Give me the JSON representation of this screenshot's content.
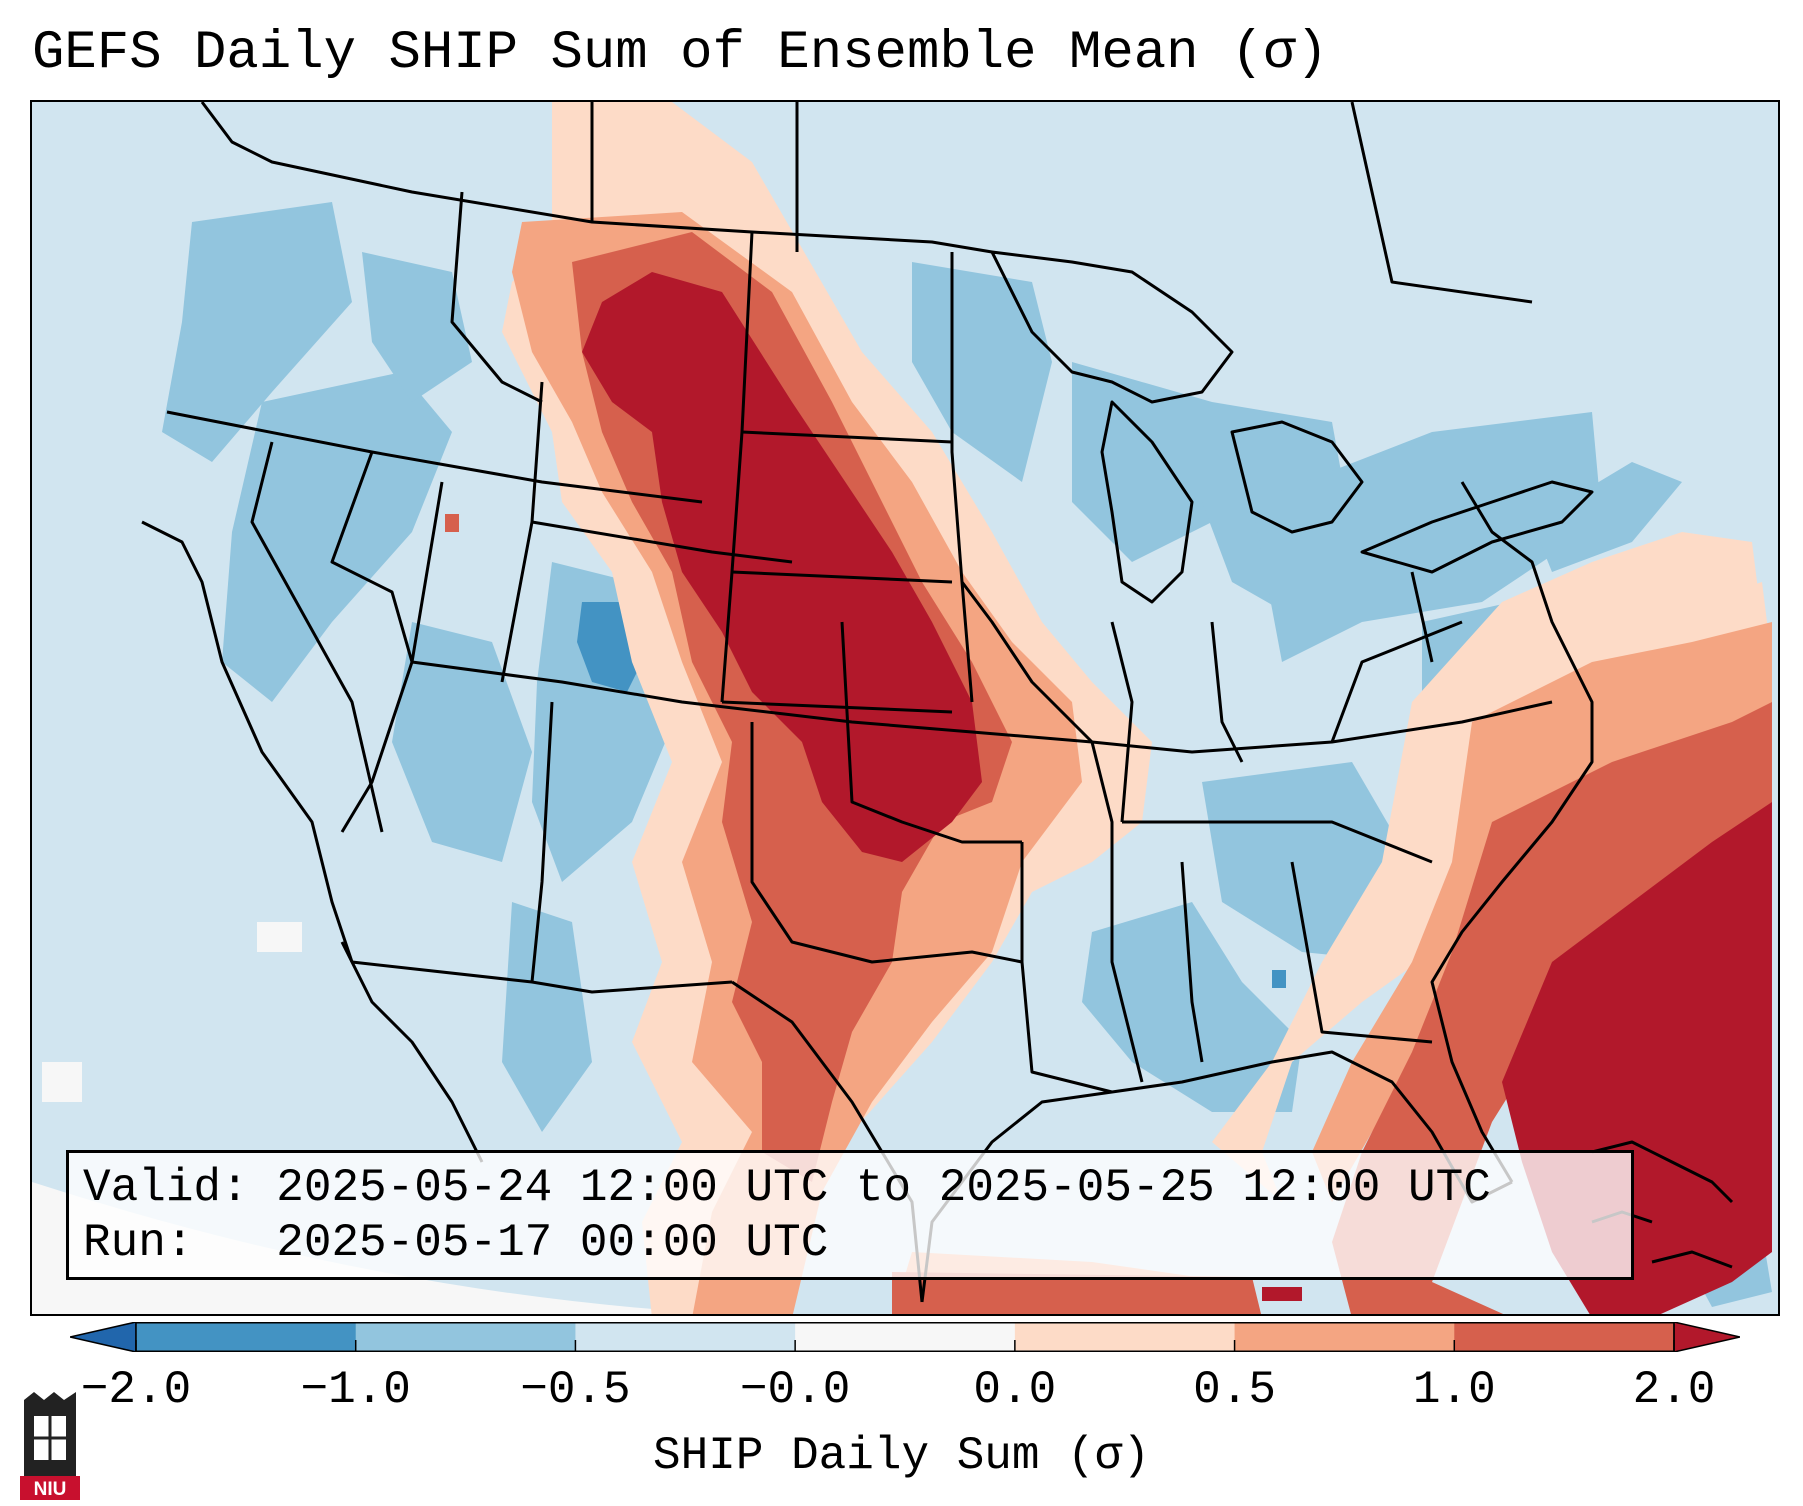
{
  "header": {
    "title": "GEFS Daily SHIP Sum of Ensemble Mean (σ)"
  },
  "info": {
    "valid_line": "Valid: 2025-05-24 12:00 UTC to 2025-05-25 12:00 UTC",
    "run_line": "Run:   2025-05-17 00:00 UTC"
  },
  "colorbar": {
    "title": "SHIP Daily Sum (σ)",
    "tick_labels": [
      "−2.0",
      "−1.0",
      "−0.5",
      "−0.0",
      "0.0",
      "0.5",
      "1.0",
      "2.0"
    ],
    "bins": [
      {
        "range": "< -2.0",
        "color": "#2166ac"
      },
      {
        "range": "-2.0 to -1.0",
        "color": "#4393c3"
      },
      {
        "range": "-1.0 to -0.5",
        "color": "#92c5de"
      },
      {
        "range": "-0.5 to -0.0",
        "color": "#d1e5f0"
      },
      {
        "range": "-0.0 to 0.0",
        "color": "#f7f7f7"
      },
      {
        "range": "0.0 to 0.5",
        "color": "#fddbc7"
      },
      {
        "range": "0.5 to 1.0",
        "color": "#f4a582"
      },
      {
        "range": "1.0 to 2.0",
        "color": "#d6604d"
      },
      {
        "range": "> 2.0",
        "color": "#b2182b"
      }
    ]
  },
  "logo": {
    "text": "NIU",
    "color": "#c8102e"
  }
}
